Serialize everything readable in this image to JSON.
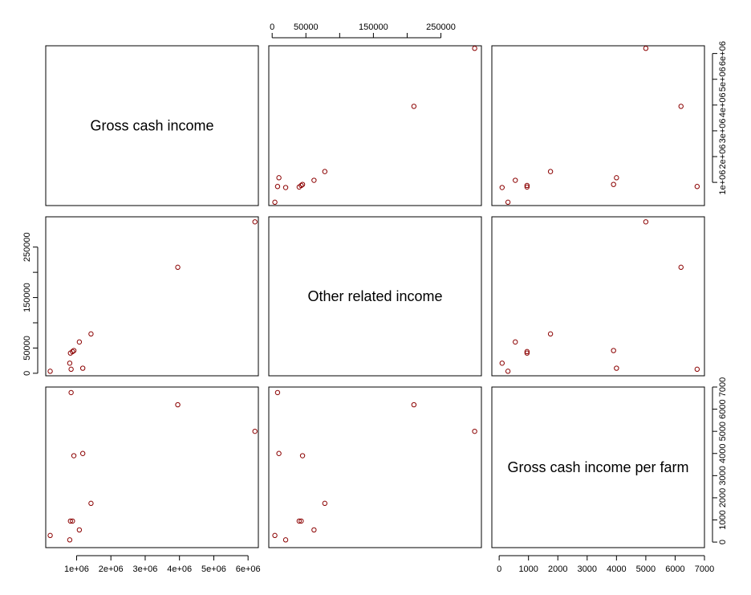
{
  "colors": {
    "point": "#8b0000",
    "axis": "#000000",
    "background": "#ffffff"
  },
  "chart_data": {
    "type": "scatter",
    "layout": "scatterplot-matrix",
    "variables": [
      "Gross cash income",
      "Other related income",
      "Gross cash income per farm"
    ],
    "axes": {
      "gross": {
        "range": [
          100000,
          6300000
        ],
        "ticks": [
          1000000,
          2000000,
          3000000,
          4000000,
          5000000,
          6000000
        ],
        "tick_labels": [
          "1e+06",
          "2e+06",
          "3e+06",
          "4e+06",
          "5e+06",
          "6e+06"
        ]
      },
      "other": {
        "range": [
          -5000,
          310000
        ],
        "ticks": [
          0,
          50000,
          150000,
          250000
        ],
        "tick_labels": [
          "0",
          "50000",
          "150000",
          "250000"
        ],
        "minor_ticks": [
          100000,
          200000
        ]
      },
      "perfarm": {
        "range": [
          -250,
          7000
        ],
        "ticks": [
          0,
          1000,
          2000,
          3000,
          4000,
          5000,
          6000,
          7000
        ],
        "tick_labels": [
          "0",
          "1000",
          "2000",
          "3000",
          "4000",
          "5000",
          "6000",
          "7000"
        ]
      }
    },
    "series": [
      {
        "points": [
          {
            "gross": 6200000,
            "other": 300000,
            "perfarm": 5000
          },
          {
            "gross": 3950000,
            "other": 210000,
            "perfarm": 6200
          },
          {
            "gross": 1420000,
            "other": 78000,
            "perfarm": 1750
          },
          {
            "gross": 1180000,
            "other": 10000,
            "perfarm": 4000
          },
          {
            "gross": 1080000,
            "other": 62000,
            "perfarm": 550
          },
          {
            "gross": 920000,
            "other": 45000,
            "perfarm": 3900
          },
          {
            "gross": 880000,
            "other": 43000,
            "perfarm": 950
          },
          {
            "gross": 840000,
            "other": 8000,
            "perfarm": 6750
          },
          {
            "gross": 820000,
            "other": 40000,
            "perfarm": 950
          },
          {
            "gross": 800000,
            "other": 20000,
            "perfarm": 100
          },
          {
            "gross": 230000,
            "other": 4000,
            "perfarm": 300
          }
        ]
      }
    ]
  }
}
